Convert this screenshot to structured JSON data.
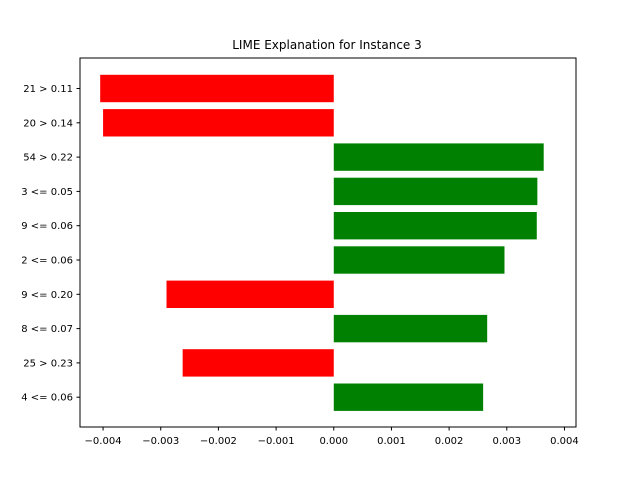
{
  "chart_data": {
    "type": "bar",
    "orientation": "horizontal",
    "title": "LIME Explanation for Instance 3",
    "xlabel": "",
    "ylabel": "",
    "xlim": [
      -0.0044,
      0.0042
    ],
    "xticks": [
      -0.004,
      -0.003,
      -0.002,
      -0.001,
      0.0,
      0.001,
      0.002,
      0.003,
      0.004
    ],
    "xtick_labels": [
      "−0.004",
      "−0.003",
      "−0.002",
      "−0.001",
      "0.000",
      "0.001",
      "0.002",
      "0.003",
      "0.004"
    ],
    "grid": false,
    "categories": [
      "21 > 0.11",
      "20 > 0.14",
      "54 > 0.22",
      "3 <= 0.05",
      "9 <= 0.06",
      "2 <= 0.06",
      "9 <= 0.20",
      "8 <= 0.07",
      "25 > 0.23",
      "4 <= 0.06"
    ],
    "values": [
      -0.00405,
      -0.004,
      0.00364,
      0.00353,
      0.00352,
      0.00296,
      -0.0029,
      0.00266,
      -0.00262,
      0.00259
    ],
    "colors": {
      "positive": "#008000",
      "negative": "#ff0000"
    }
  }
}
